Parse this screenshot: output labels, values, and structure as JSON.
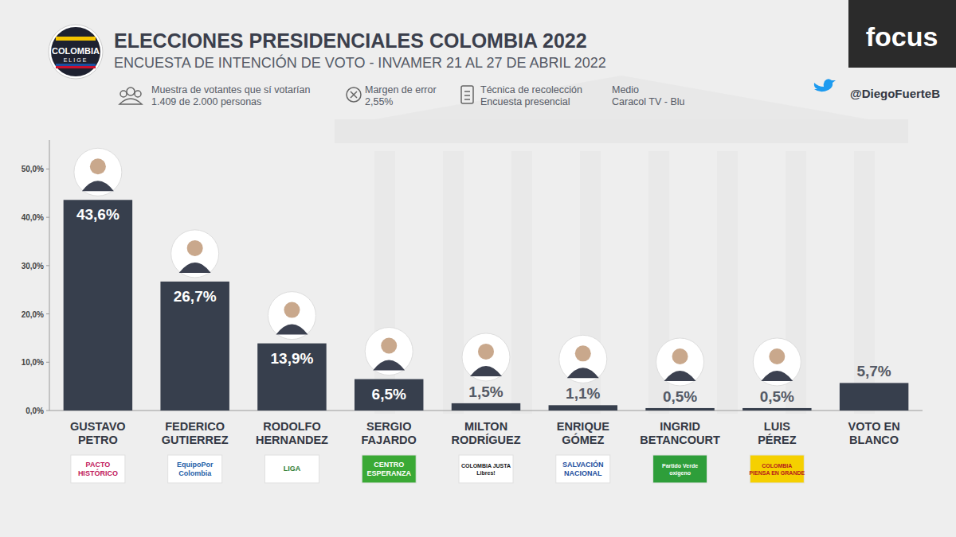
{
  "chart_data": {
    "type": "bar",
    "title": "ELECCIONES PRESIDENCIALES COLOMBIA 2022",
    "subtitle": "ENCUESTA DE INTENCIÓN DE VOTO  - INVAMER 21 AL 27 DE ABRIL 2022",
    "info": [
      {
        "label": "Muestra de votantes que sí votarían",
        "value": "1.409 de 2.000 personas"
      },
      {
        "label": "Margen de error",
        "value": "2,55%"
      },
      {
        "label": "Técnica de recolección",
        "value": "Encuesta presencial"
      },
      {
        "label": "Medio",
        "value": "Caracol TV - Blu"
      }
    ],
    "brand": "focus",
    "handle": "@DiegoFuerteB",
    "logo_text": [
      "COLOMBIA",
      "ELIGE"
    ],
    "categories": [
      "GUSTAVO\nPETRO",
      "FEDERICO\nGUTIERREZ",
      "RODOLFO\nHERNANDEZ",
      "SERGIO\nFAJARDO",
      "MILTON\nRODRÍGUEZ",
      "ENRIQUE\nGÓMEZ",
      "INGRID\nBETANCOURT",
      "LUIS\nPÉREZ",
      "VOTO EN\nBLANCO"
    ],
    "party_logos": [
      "PACTO\nHISTÓRICO",
      "EquipoPor\nColombia",
      "LIGA",
      "CENTRO\nESPERANZA",
      "COLOMBIA JUSTA\nLibres!",
      "SALVACIÓN\nNACIONAL",
      "Partido Verde\noxígeno",
      "COLOMBIA\nPIENSA EN GRANDE",
      null
    ],
    "values": [
      43.6,
      26.7,
      13.9,
      6.5,
      1.5,
      1.1,
      0.5,
      0.5,
      5.7
    ],
    "value_labels": [
      "43,6%",
      "26,7%",
      "13,9%",
      "6,5%",
      "1,5%",
      "1,1%",
      "0,5%",
      "0,5%",
      "5,7%"
    ],
    "color": "#373f4d",
    "ylim": [
      0,
      56
    ],
    "yticks": [
      {
        "value": 0,
        "label": "0,0%"
      },
      {
        "value": 10,
        "label": "10,0%"
      },
      {
        "value": 20,
        "label": "20,0%"
      },
      {
        "value": 30,
        "label": "30,0%"
      },
      {
        "value": 40,
        "label": "40,0%"
      },
      {
        "value": 50,
        "label": "50,0%"
      }
    ],
    "grid": false,
    "data_labels": true
  }
}
